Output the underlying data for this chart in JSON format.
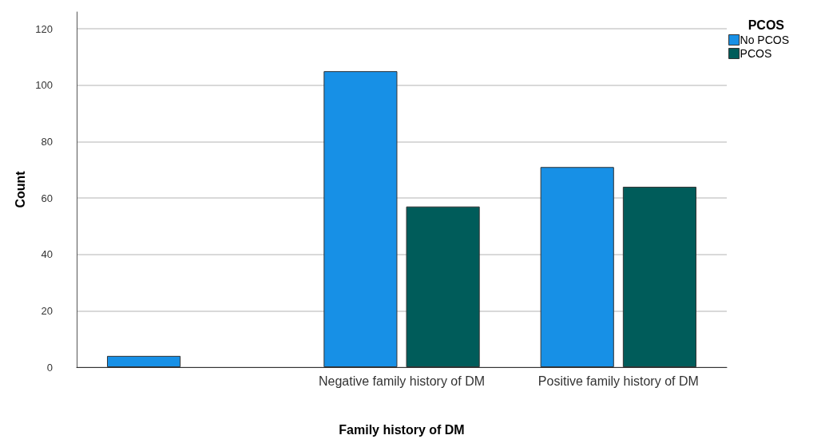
{
  "chart_data": {
    "type": "bar",
    "xlabel": "Family history of DM",
    "ylabel": "Count",
    "legend_title": "PCOS",
    "categories": [
      null,
      "Negative family history of DM",
      "Positive family history of DM"
    ],
    "series": [
      {
        "name": "No PCOS",
        "color": "#1790e6",
        "values": [
          4,
          105,
          71
        ]
      },
      {
        "name": "PCOS",
        "color": "#005c5a",
        "values": [
          null,
          57,
          64
        ]
      }
    ],
    "ylim": [
      0,
      126
    ],
    "yticks": [
      0,
      20,
      40,
      60,
      80,
      100,
      120
    ],
    "grid": "y",
    "legend": "top right"
  }
}
